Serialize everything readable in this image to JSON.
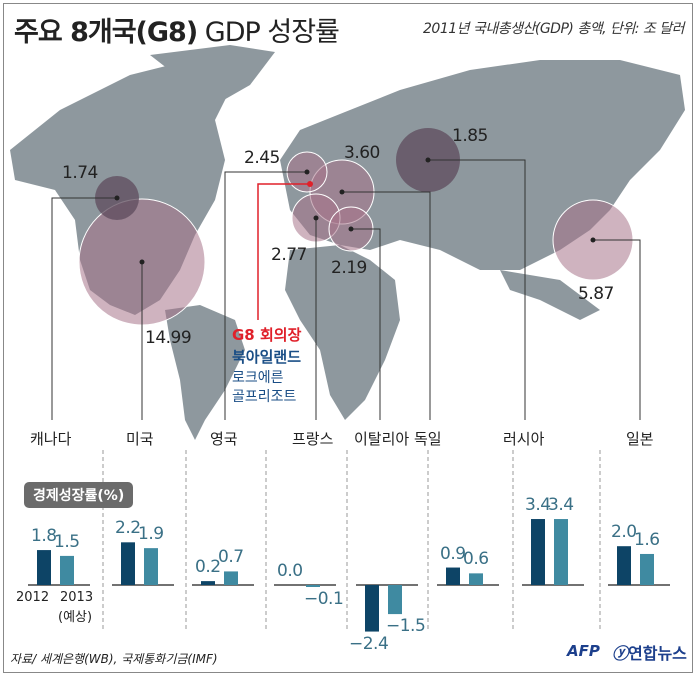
{
  "title_bold": "주요 8개국(G8)",
  "title_rest": "GDP 성장률",
  "subtitle": "2011년 국내총생산(GDP) 총액, 단위: 조 달러",
  "summit": {
    "label": "G8 회의장",
    "venue1": "북아일랜드",
    "venue2": "로크에른",
    "venue3": "골프리조트"
  },
  "colors": {
    "bar_2012": "#0d4466",
    "bar_2013": "#3f8aa1",
    "bubble": "#a8748a",
    "map": "#8e989e"
  },
  "gdp": [
    {
      "country": "캐나다",
      "value": "1.74"
    },
    {
      "country": "미국",
      "value": "14.99"
    },
    {
      "country": "영국",
      "value": "2.45"
    },
    {
      "country": "프랑스",
      "value": "2.77"
    },
    {
      "country": "이탈리아",
      "value": "2.19"
    },
    {
      "country": "독일",
      "value": "3.60"
    },
    {
      "country": "러시아",
      "value": "1.85"
    },
    {
      "country": "일본",
      "value": "5.87"
    }
  ],
  "chart_data": {
    "type": "bar",
    "title": "경제성장률(%)",
    "categories": [
      "캐나다",
      "미국",
      "영국",
      "프랑스",
      "이탈리아",
      "독일",
      "러시아",
      "일본"
    ],
    "series": [
      {
        "name": "2012",
        "values": [
          1.8,
          2.2,
          0.2,
          0.0,
          -2.4,
          0.9,
          3.4,
          2.0
        ]
      },
      {
        "name": "2013",
        "sublabel": "(예상)",
        "values": [
          1.5,
          1.9,
          0.7,
          -0.1,
          -1.5,
          0.6,
          3.4,
          1.6
        ]
      }
    ],
    "value_labels_2012": [
      "1.8",
      "2.2",
      "0.2",
      "0.0",
      "−2.4",
      "0.9",
      "3.4",
      "2.0"
    ],
    "value_labels_2013": [
      "1.5",
      "1.9",
      "0.7",
      "−0.1",
      "−1.5",
      "0.6",
      "3.4",
      "1.6"
    ]
  },
  "source": "자료/ 세계은행(WB), 국제통화기금(IMF)",
  "logos": {
    "afp": "AFP",
    "yonhap": "연합뉴스"
  }
}
